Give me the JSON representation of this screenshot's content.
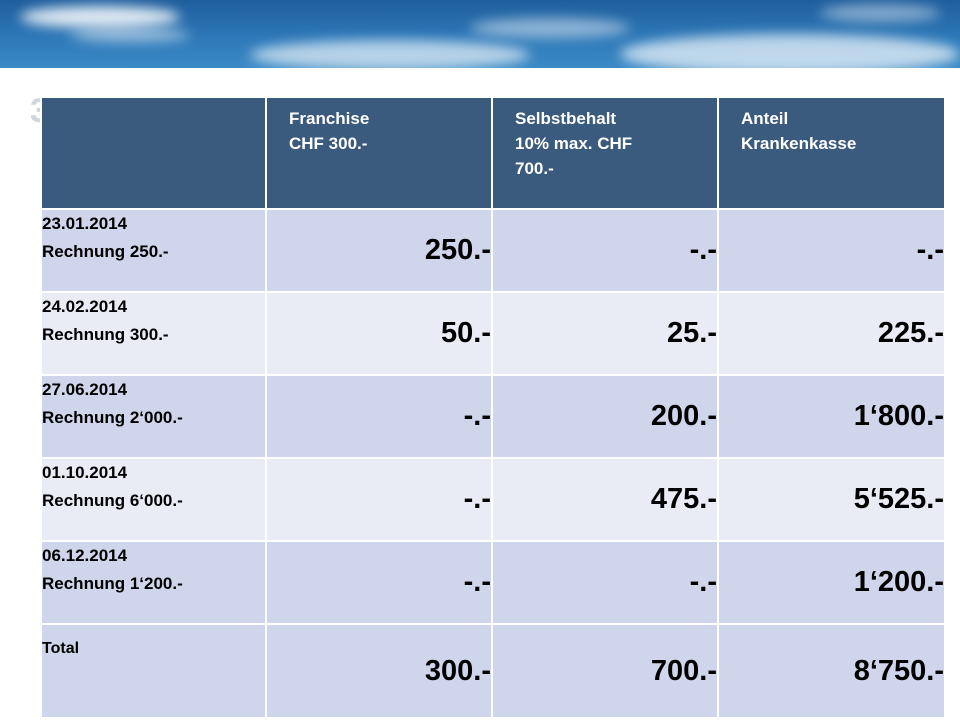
{
  "title_fragment": "3",
  "table": {
    "headers": [
      {
        "line1": "Franchise",
        "line2": "CHF 300.-",
        "line3": ""
      },
      {
        "line1": "Selbstbehalt",
        "line2": "10% max. CHF",
        "line3": "700.-"
      },
      {
        "line1": "Anteil",
        "line2": "Krankenkasse",
        "line3": ""
      }
    ],
    "rows": [
      {
        "date": "23.01.2014",
        "desc": "Rechnung 250.-",
        "franchise": "250.-",
        "selbstbehalt": "-.-",
        "anteil": "-.-"
      },
      {
        "date": "24.02.2014",
        "desc": "Rechnung 300.-",
        "franchise": "50.-",
        "selbstbehalt": "25.-",
        "anteil": "225.-"
      },
      {
        "date": "27.06.2014",
        "desc": "Rechnung 2‘000.-",
        "franchise": "-.-",
        "selbstbehalt": "200.-",
        "anteil": "1‘800.-"
      },
      {
        "date": "01.10.2014",
        "desc": "Rechnung 6‘000.-",
        "franchise": "-.-",
        "selbstbehalt": "475.-",
        "anteil": "5‘525.-"
      },
      {
        "date": "06.12.2014",
        "desc": "Rechnung 1‘200.-",
        "franchise": "-.-",
        "selbstbehalt": "-.-",
        "anteil": "1‘200.-"
      }
    ],
    "total": {
      "label": "Total",
      "franchise": "300.-",
      "selbstbehalt": "700.-",
      "anteil": "8‘750.-"
    }
  }
}
